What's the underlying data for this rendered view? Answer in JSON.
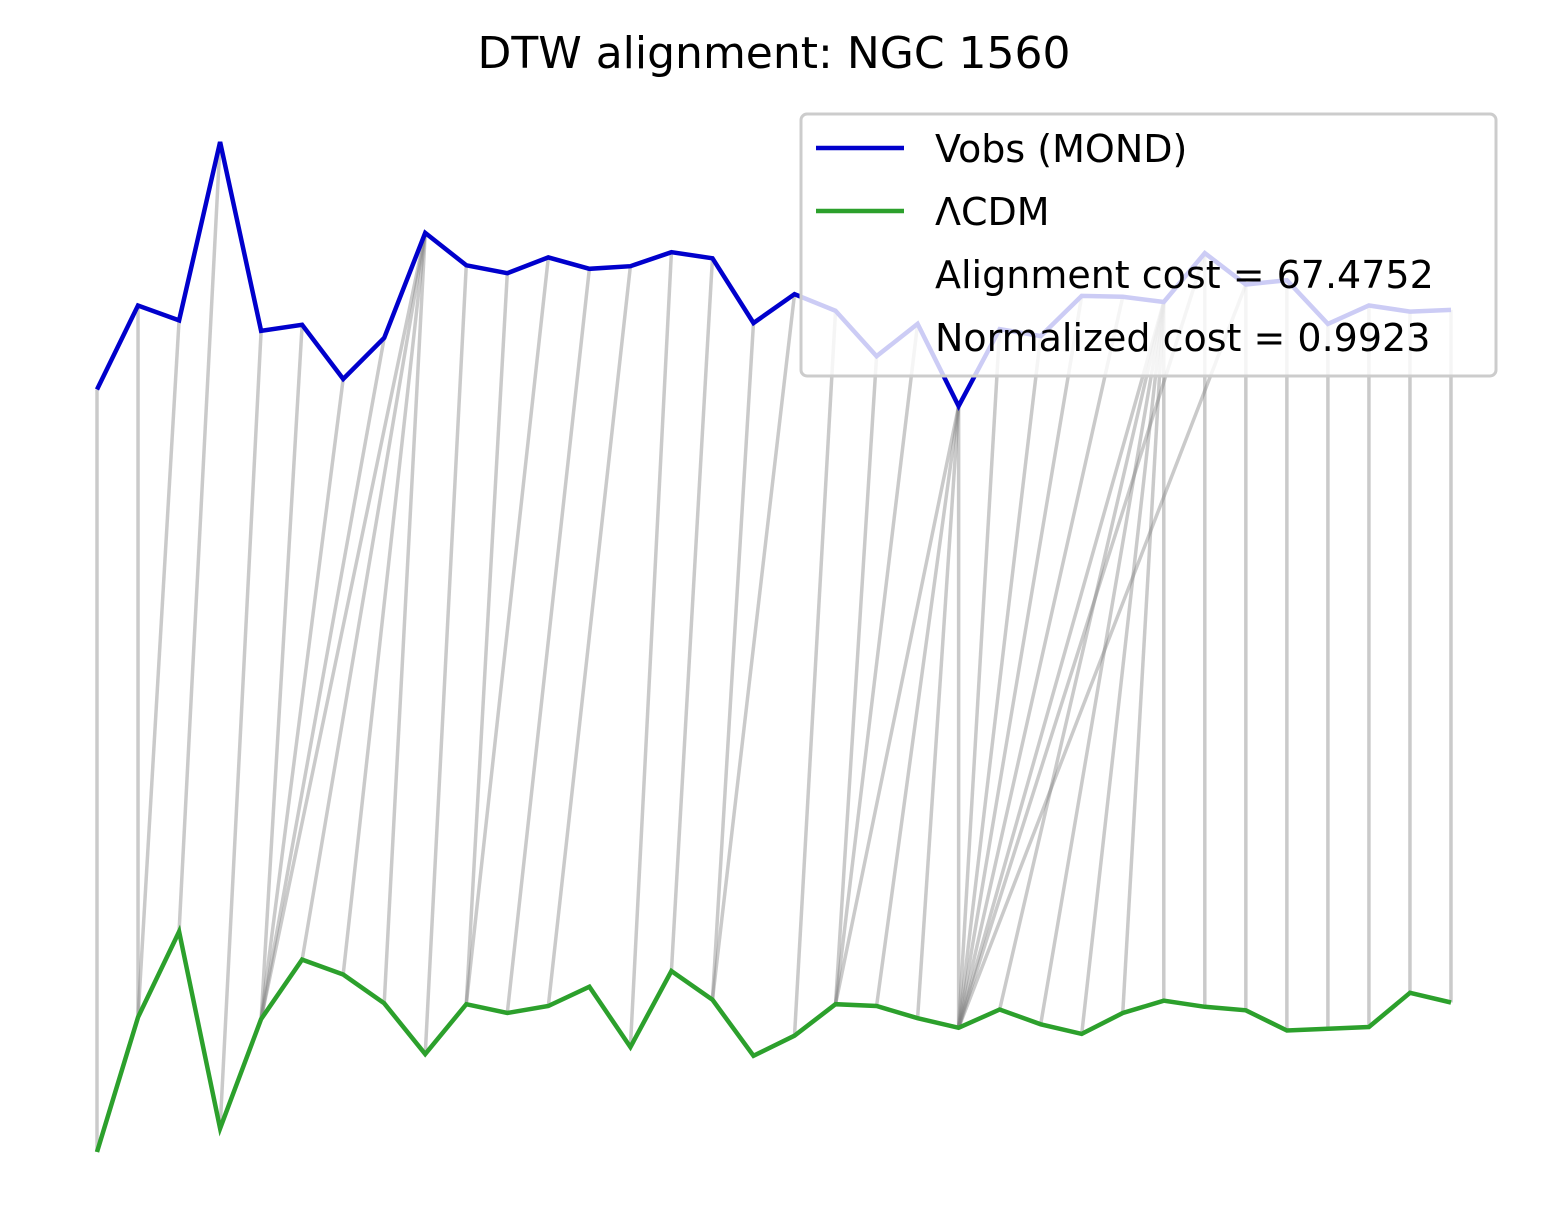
{
  "chart_data": {
    "type": "line",
    "title": "DTW alignment: NGC 1560",
    "xlabel": "",
    "ylabel": "",
    "axes_visible": false,
    "grid": false,
    "legend_position": "top-right",
    "x": [
      0,
      1,
      2,
      3,
      4,
      5,
      6,
      7,
      8,
      9,
      10,
      11,
      12,
      13,
      14,
      15,
      16,
      17,
      18,
      19,
      20,
      21,
      22,
      23,
      24,
      25,
      26,
      27,
      28,
      29,
      30,
      31,
      32,
      33
    ],
    "series": [
      {
        "name": "Vobs (MOND)",
        "color": "#0000cc",
        "values": [
          4.09,
          5.05,
          4.88,
          6.92,
          4.76,
          4.83,
          4.21,
          4.68,
          5.88,
          5.51,
          5.42,
          5.6,
          5.47,
          5.5,
          5.66,
          5.59,
          4.85,
          5.18,
          4.99,
          4.47,
          4.84,
          3.9,
          4.78,
          4.7,
          5.16,
          5.15,
          5.09,
          5.65,
          5.29,
          5.34,
          4.84,
          5.05,
          4.98,
          5.0
        ]
      },
      {
        "name": "ΛCDM",
        "color": "#2ca02c",
        "values": [
          -4.63,
          -3.09,
          -2.11,
          -4.36,
          -3.11,
          -2.43,
          -2.6,
          -2.93,
          -3.51,
          -2.94,
          -3.04,
          -2.96,
          -2.74,
          -3.43,
          -2.56,
          -2.89,
          -3.53,
          -3.3,
          -2.94,
          -2.96,
          -3.1,
          -3.21,
          -3.0,
          -3.17,
          -3.28,
          -3.04,
          -2.9,
          -2.97,
          -3.01,
          -3.24,
          -3.22,
          -3.2,
          -2.81,
          -2.92
        ]
      }
    ],
    "alignment_path": [
      [
        0,
        0
      ],
      [
        1,
        1
      ],
      [
        2,
        1
      ],
      [
        3,
        2
      ],
      [
        4,
        3
      ],
      [
        5,
        4
      ],
      [
        6,
        4
      ],
      [
        7,
        4
      ],
      [
        8,
        4
      ],
      [
        8,
        5
      ],
      [
        8,
        6
      ],
      [
        8,
        7
      ],
      [
        9,
        8
      ],
      [
        10,
        9
      ],
      [
        11,
        9
      ],
      [
        12,
        10
      ],
      [
        13,
        11
      ],
      [
        14,
        13
      ],
      [
        15,
        14
      ],
      [
        16,
        15
      ],
      [
        17,
        15
      ],
      [
        18,
        17
      ],
      [
        19,
        18
      ],
      [
        20,
        18
      ],
      [
        21,
        18
      ],
      [
        21,
        19
      ],
      [
        21,
        20
      ],
      [
        21,
        21
      ],
      [
        22,
        21
      ],
      [
        23,
        21
      ],
      [
        24,
        21
      ],
      [
        25,
        21
      ],
      [
        26,
        21
      ],
      [
        27,
        21
      ],
      [
        28,
        21
      ],
      [
        26,
        22
      ],
      [
        26,
        23
      ],
      [
        26,
        24
      ],
      [
        26,
        25
      ],
      [
        26,
        26
      ],
      [
        27,
        27
      ],
      [
        28,
        28
      ],
      [
        29,
        29
      ],
      [
        30,
        30
      ],
      [
        31,
        31
      ],
      [
        32,
        32
      ],
      [
        33,
        33
      ]
    ],
    "annotations": [
      "Alignment cost = 67.4752",
      "Normalized cost = 0.9923"
    ]
  }
}
